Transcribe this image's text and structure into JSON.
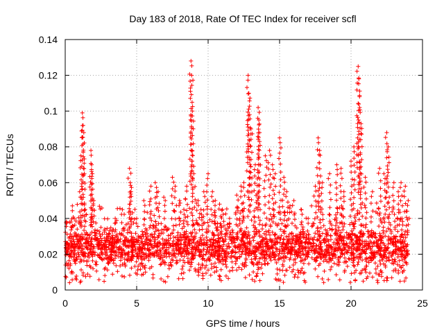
{
  "chart_data": {
    "type": "scatter",
    "title": "Day 183 of 2018, Rate Of TEC Index for receiver scfl",
    "xlabel": "GPS time / hours",
    "ylabel": "ROTI / TECUs",
    "xlim": [
      0,
      25
    ],
    "ylim": [
      0,
      0.14
    ],
    "xticks": [
      0,
      5,
      10,
      15,
      20,
      25
    ],
    "xtick_labels": [
      "0",
      "5",
      "10",
      "15",
      "20",
      "25"
    ],
    "yticks": [
      0,
      0.02,
      0.04,
      0.06,
      0.08,
      0.1,
      0.12,
      0.14
    ],
    "ytick_labels": [
      "0",
      "0.02",
      "0.04",
      "0.06",
      "0.08",
      "0.1",
      "0.12",
      "0.14"
    ],
    "grid": true,
    "marker": "+",
    "color": "#ff0000",
    "series": [
      {
        "name": "ROTI",
        "x": [
          0.1,
          0.2,
          0.3,
          0.4,
          0.5,
          0.6,
          1.1,
          1.2,
          1.25,
          1.3,
          1.4,
          1.8,
          1.85,
          1.9,
          2.0,
          2.5,
          3.0,
          3.5,
          4.0,
          4.5,
          4.55,
          4.6,
          5.0,
          5.5,
          6.0,
          6.3,
          6.5,
          7.0,
          7.5,
          7.7,
          8.0,
          8.3,
          8.5,
          8.8,
          8.85,
          8.9,
          9.0,
          9.3,
          9.5,
          9.7,
          10.0,
          10.3,
          10.5,
          10.8,
          11.0,
          11.5,
          12.0,
          12.3,
          12.5,
          12.8,
          12.85,
          12.9,
          13.0,
          13.3,
          13.5,
          13.55,
          13.6,
          14.0,
          14.3,
          14.5,
          14.7,
          15.0,
          15.3,
          15.5,
          16.0,
          16.5,
          17.0,
          17.5,
          17.7,
          17.8,
          18.0,
          18.5,
          19.0,
          19.3,
          19.5,
          20.0,
          20.2,
          20.5,
          20.55,
          20.6,
          20.7,
          21.0,
          21.5,
          22.0,
          22.3,
          22.5,
          22.6,
          23.0,
          23.3,
          23.5,
          23.8,
          24.0
        ],
        "y": [
          0.015,
          0.025,
          0.02,
          0.038,
          0.047,
          0.03,
          0.075,
          0.099,
          0.092,
          0.088,
          0.045,
          0.078,
          0.07,
          0.065,
          0.05,
          0.035,
          0.03,
          0.04,
          0.045,
          0.068,
          0.06,
          0.055,
          0.04,
          0.05,
          0.058,
          0.06,
          0.055,
          0.05,
          0.063,
          0.058,
          0.05,
          0.045,
          0.058,
          0.128,
          0.12,
          0.1,
          0.065,
          0.05,
          0.045,
          0.055,
          0.065,
          0.055,
          0.05,
          0.048,
          0.045,
          0.04,
          0.053,
          0.058,
          0.06,
          0.12,
          0.11,
          0.098,
          0.09,
          0.07,
          0.102,
          0.095,
          0.088,
          0.075,
          0.078,
          0.07,
          0.065,
          0.085,
          0.063,
          0.055,
          0.05,
          0.045,
          0.04,
          0.058,
          0.085,
          0.078,
          0.06,
          0.065,
          0.07,
          0.068,
          0.055,
          0.072,
          0.08,
          0.125,
          0.118,
          0.102,
          0.093,
          0.063,
          0.055,
          0.068,
          0.065,
          0.088,
          0.08,
          0.06,
          0.055,
          0.06,
          0.058,
          0.05
        ]
      }
    ],
    "dense_band": {
      "x_range": [
        0,
        24
      ],
      "y_low_typical": 0.008,
      "y_high_typical": 0.033
    }
  }
}
